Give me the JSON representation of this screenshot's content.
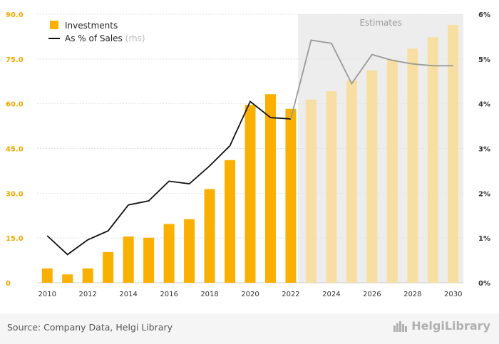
{
  "chart_data": {
    "type": "bar",
    "categories": [
      "2010",
      "2011",
      "2012",
      "2013",
      "2014",
      "2015",
      "2016",
      "2017",
      "2018",
      "2019",
      "2020",
      "2021",
      "2022",
      "2023",
      "2024",
      "2025",
      "2026",
      "2027",
      "2028",
      "2029",
      "2030"
    ],
    "x_tick_labels": [
      "2010",
      "2012",
      "2014",
      "2016",
      "2018",
      "2020",
      "2022",
      "2024",
      "2026",
      "2028",
      "2030"
    ],
    "series": [
      {
        "name": "Investments",
        "type": "bar",
        "axis": "left",
        "values": [
          4.8,
          2.8,
          4.8,
          10.3,
          15.5,
          15.1,
          19.7,
          21.3,
          31.4,
          41.1,
          59.6,
          63.2,
          58.3,
          61.4,
          64.2,
          67.8,
          71.2,
          74.8,
          78.5,
          82.3,
          86.4
        ]
      },
      {
        "name": "As % of Sales",
        "name_suffix": "(rhs)",
        "type": "line",
        "axis": "right",
        "values": [
          1.05,
          0.63,
          0.96,
          1.16,
          1.74,
          1.83,
          2.27,
          2.21,
          2.61,
          3.06,
          4.05,
          3.69,
          3.66,
          5.42,
          5.35,
          4.45,
          5.1,
          4.97,
          4.89,
          4.85,
          4.85
        ]
      }
    ],
    "estimate_start_index": 13,
    "estimates_label": "Estimates",
    "ylim": [
      0,
      90
    ],
    "y_ticks": [
      "0",
      "15.0",
      "30.0",
      "45.0",
      "60.0",
      "75.0",
      "90.0"
    ],
    "y2lim": [
      0,
      6
    ],
    "y2_ticks": [
      "0%",
      "1%",
      "2%",
      "3%",
      "4%",
      "5%",
      "6%"
    ],
    "legend_position": "top-left",
    "grid": true,
    "colors": {
      "bar": "#f9b000",
      "bar_estimate": "#f7dfa3",
      "line": "#111111",
      "line_estimate": "#9a9a9a",
      "estimate_band": "#ededed",
      "axis_text_left": "#f0a800",
      "axis_text_right": "#333333"
    }
  },
  "footer": {
    "source": "Source: Company Data, Helgi Library",
    "brand": "HelgiLibrary"
  }
}
